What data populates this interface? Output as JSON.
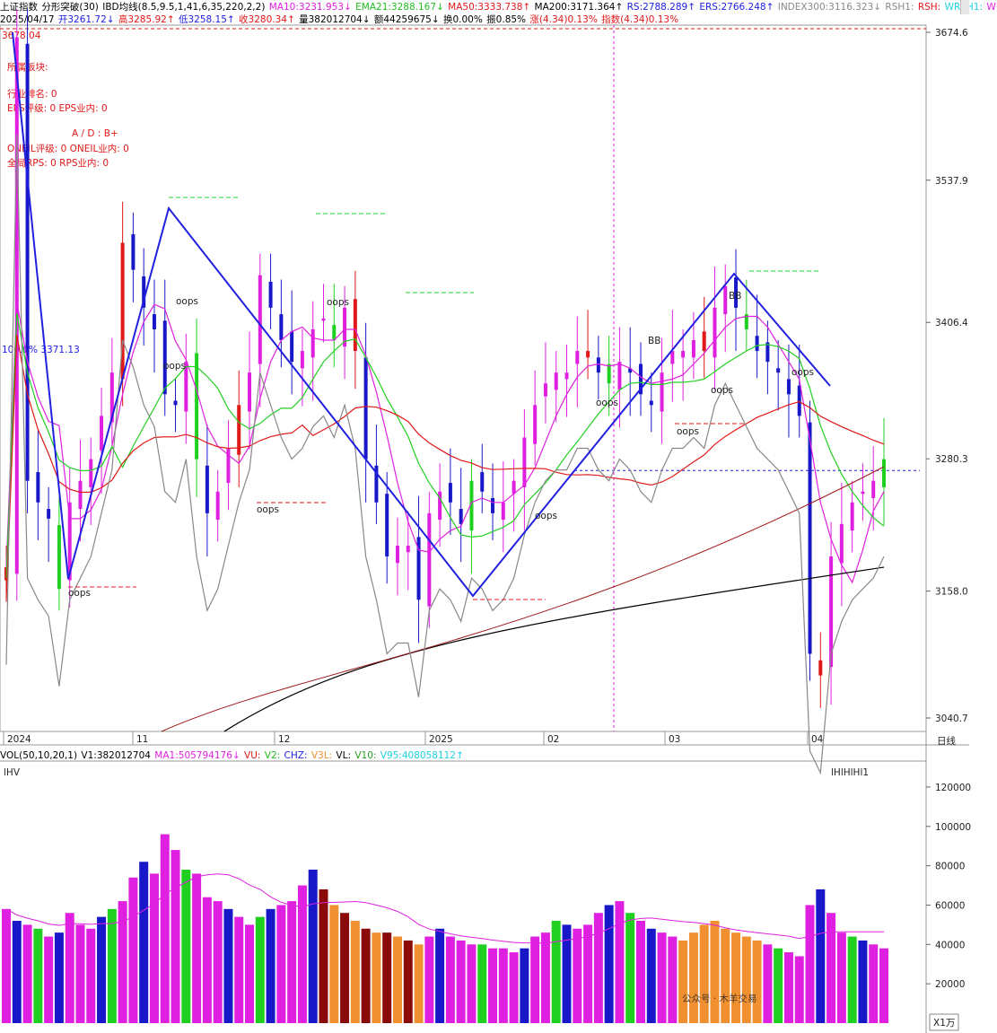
{
  "header": {
    "row1": [
      {
        "t": "上证指数",
        "c": "#000"
      },
      {
        "t": "分形突破(30)",
        "c": "#000"
      },
      {
        "t": "IBD均线(8.5,9.5,1,41,6,35,220,2,2)",
        "c": "#000"
      },
      {
        "t": "MA10:3231.953↓",
        "c": "#e020e0"
      },
      {
        "t": "EMA21:3288.167↓",
        "c": "#20c020"
      },
      {
        "t": "MA50:3333.738↑",
        "c": "#e01818"
      },
      {
        "t": "MA200:3171.364↑",
        "c": "#000"
      },
      {
        "t": "RS:2788.289↑",
        "c": "#2020e0"
      },
      {
        "t": "ERS:2766.248↑",
        "c": "#2020e0"
      },
      {
        "t": "INDEX300:3116.323↓",
        "c": "#888"
      },
      {
        "t": "RSH1:",
        "c": "#888"
      },
      {
        "t": "RSH:",
        "c": "#e01818"
      },
      {
        "t": "WRSH1:",
        "c": "#20d0e0"
      },
      {
        "t": "W",
        "c": "#e020e0"
      }
    ],
    "row2": [
      {
        "t": "2025/04/17",
        "c": "#000"
      },
      {
        "t": "开3261.72↓",
        "c": "#2020e0"
      },
      {
        "t": "高3285.92↑",
        "c": "#e01818"
      },
      {
        "t": "低3258.15↑",
        "c": "#2020e0"
      },
      {
        "t": "收3280.34↑",
        "c": "#e01818"
      },
      {
        "t": "量382012704↓",
        "c": "#000"
      },
      {
        "t": "额44259675↓",
        "c": "#000"
      },
      {
        "t": "换0.00%",
        "c": "#000"
      },
      {
        "t": "振0.85%",
        "c": "#000"
      },
      {
        "t": "涨(4.34)0.13%",
        "c": "#e01818"
      },
      {
        "t": "指数(4.34)0.13%",
        "c": "#e01818"
      }
    ]
  },
  "info_panel": {
    "high_label": "3678.04",
    "sector": "所属板块:",
    "rank": "行业排名: 0",
    "eps": "EPS评级: 0  EPS业内: 0",
    "ad": "A / D : B+",
    "oneil": "ONEIL评级: 0  ONEIL业内: 0",
    "rps": "全局RPS: 0  RPS业内: 0",
    "fib": "100.0%  3371.13"
  },
  "main_axis": {
    "ticks": [
      "3674.6",
      "3537.9",
      "3406.4",
      "3280.3",
      "3158.0",
      "3040.7"
    ],
    "current_price": "3280.3",
    "time_labels": [
      "2024",
      "11",
      "12",
      "2025",
      "02",
      "03",
      "04"
    ],
    "period": "日线"
  },
  "annotations": {
    "oops": "oops",
    "bb": "BB"
  },
  "volume": {
    "header": [
      {
        "t": "VOL(50,10,20,1)",
        "c": "#000"
      },
      {
        "t": "V1:382012704",
        "c": "#000"
      },
      {
        "t": "MA1:505794176↓",
        "c": "#e020e0"
      },
      {
        "t": "VU:",
        "c": "#e01818"
      },
      {
        "t": "V2:",
        "c": "#20c020"
      },
      {
        "t": "CHZ:",
        "c": "#2020e0"
      },
      {
        "t": "V3L:",
        "c": "#f09030"
      },
      {
        "t": "VL:",
        "c": "#000"
      },
      {
        "t": "V10:",
        "c": "#20a020"
      },
      {
        "t": "V95:408058112↑",
        "c": "#20d0e0"
      }
    ],
    "ticks": [
      "120000",
      "100000",
      "80000",
      "60000",
      "40000",
      "20000"
    ],
    "unit": "X1万",
    "markers": "lHV",
    "markers2": "lHlHlHl1"
  },
  "watermark": "公众号 · 木羊交易",
  "colors": {
    "up": "#e01818",
    "down": "#1818c8",
    "pink": "#e020e0",
    "green": "#20d020",
    "orange": "#f09030",
    "maroon": "#8a0a0a",
    "ma200": "#000000",
    "index300": "#888888"
  },
  "chart_data": {
    "type": "candlestick",
    "title": "上证指数",
    "period": "日线",
    "date": "2025/04/17",
    "ohlc_last": {
      "open": 3261.72,
      "high": 3285.92,
      "low": 3258.15,
      "close": 3280.34
    },
    "ylim": [
      3040.7,
      3674.6
    ],
    "price_path": [
      3180,
      3670,
      3260,
      3240,
      3225,
      3160,
      3240,
      3260,
      3280,
      3320,
      3360,
      3480,
      3455,
      3420,
      3400,
      3340,
      3330,
      3370,
      3280,
      3230,
      3250,
      3290,
      3330,
      3360,
      3450,
      3420,
      3390,
      3370,
      3380,
      3400,
      3410,
      3390,
      3420,
      3380,
      3280,
      3240,
      3190,
      3200,
      3200,
      3150,
      3230,
      3250,
      3240,
      3220,
      3260,
      3250,
      3230,
      3240,
      3260,
      3300,
      3330,
      3350,
      3360,
      3360,
      3380,
      3380,
      3360,
      3350,
      3370,
      3360,
      3340,
      3330,
      3360,
      3380,
      3380,
      3390,
      3380,
      3420,
      3440,
      3420,
      3400,
      3380,
      3370,
      3360,
      3340,
      3320,
      3100,
      3080,
      3190,
      3220,
      3240,
      3250,
      3260,
      3280
    ],
    "volume_values_wan": [
      58000,
      52000,
      50000,
      48000,
      44000,
      46000,
      56000,
      50000,
      48000,
      54000,
      58000,
      62000,
      74000,
      82000,
      76000,
      96000,
      88000,
      78000,
      76000,
      64000,
      62000,
      58000,
      54000,
      50000,
      54000,
      58000,
      60000,
      62000,
      70000,
      78000,
      68000,
      60000,
      56000,
      52000,
      48000,
      46000,
      46000,
      44000,
      42000,
      40000,
      44000,
      48000,
      44000,
      42000,
      40000,
      40000,
      38000,
      38000,
      36000,
      38000,
      44000,
      46000,
      52000,
      50000,
      48000,
      50000,
      56000,
      60000,
      62000,
      56000,
      52000,
      48000,
      46000,
      44000,
      42000,
      46000,
      50000,
      52000,
      48000,
      46000,
      44000,
      42000,
      40000,
      38000,
      36000,
      34000,
      60000,
      68000,
      56000,
      46000,
      44000,
      42000,
      40000,
      38000
    ]
  }
}
